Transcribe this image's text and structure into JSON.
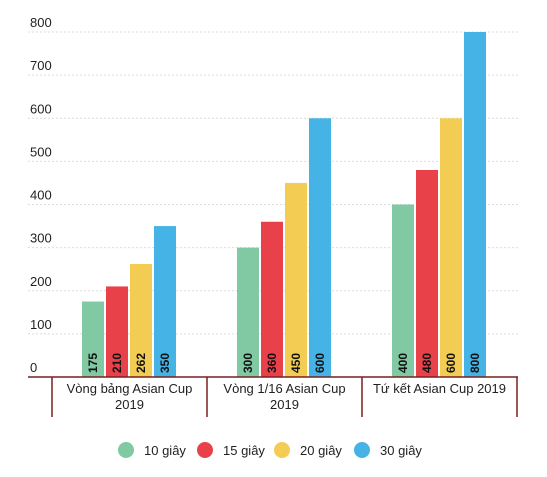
{
  "chart_data": {
    "type": "bar",
    "title": "",
    "xlabel": "",
    "ylabel": "",
    "ylim": [
      0,
      800
    ],
    "yticks": [
      "0",
      "100",
      "200",
      "300",
      "400",
      "500",
      "600",
      "700",
      "800"
    ],
    "categories": [
      [
        "Vòng bảng Asian Cup",
        "2019"
      ],
      [
        "Vòng 1/16 Asian Cup",
        "2019"
      ],
      [
        "Tứ kết Asian Cup 2019"
      ]
    ],
    "series": [
      {
        "name": "10 giây",
        "color": "#80c9a3",
        "values": [
          175,
          300,
          400
        ]
      },
      {
        "name": "15 giây",
        "color": "#e8414a",
        "values": [
          210,
          360,
          480
        ]
      },
      {
        "name": "20 giây",
        "color": "#f3cd53",
        "values": [
          262,
          450,
          600
        ]
      },
      {
        "name": "30 giây",
        "color": "#45b3e6",
        "values": [
          350,
          600,
          800
        ]
      }
    ],
    "grid": true,
    "legend_position": "bottom"
  }
}
